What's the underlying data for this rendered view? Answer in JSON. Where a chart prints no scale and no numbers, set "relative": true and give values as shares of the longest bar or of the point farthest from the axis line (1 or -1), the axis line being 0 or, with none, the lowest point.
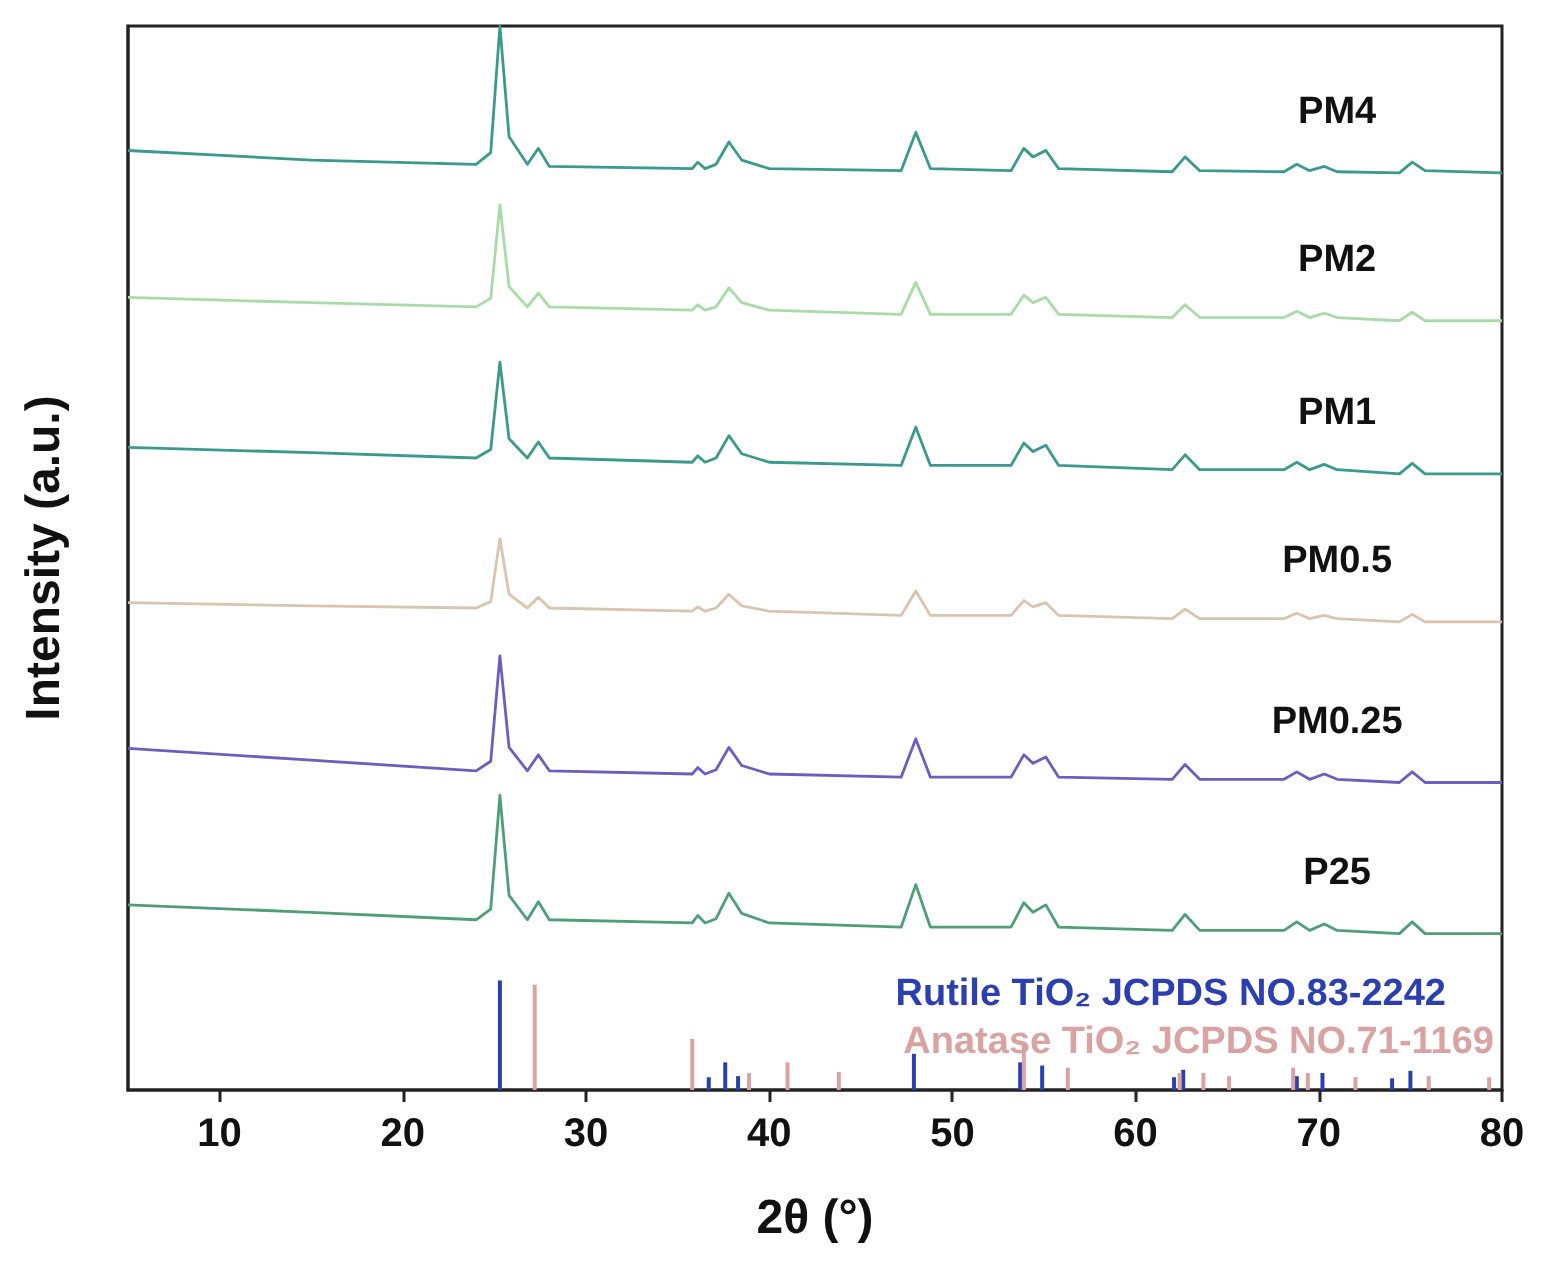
{
  "chart_data": {
    "type": "line",
    "xlabel": "2θ (°)",
    "ylabel": "Intensity (a.u.)",
    "relative": true,
    "grid": false,
    "legend": false,
    "marker": "none",
    "line_style": "solid",
    "xlim": [
      5,
      80
    ],
    "xticks": [
      10,
      20,
      30,
      40,
      50,
      60,
      70,
      80
    ],
    "x": [
      5,
      15,
      24,
      24.8,
      25.3,
      25.8,
      26.8,
      27.4,
      28,
      35.8,
      36.1,
      36.5,
      37.1,
      37.8,
      38.5,
      40,
      47.2,
      48,
      48.8,
      53.2,
      53.9,
      54.4,
      55.1,
      55.8,
      62,
      62.7,
      63.5,
      68.1,
      68.8,
      69.5,
      70.3,
      71,
      74.4,
      75.1,
      75.8,
      80
    ],
    "series": [
      {
        "name": "PM4",
        "color": "#3a9a8c",
        "values": [
          0.883,
          0.874,
          0.87,
          0.881,
          1.0,
          0.896,
          0.87,
          0.885,
          0.868,
          0.866,
          0.872,
          0.866,
          0.87,
          0.891,
          0.874,
          0.866,
          0.864,
          0.9,
          0.866,
          0.864,
          0.885,
          0.877,
          0.883,
          0.866,
          0.863,
          0.877,
          0.864,
          0.863,
          0.87,
          0.864,
          0.868,
          0.863,
          0.862,
          0.872,
          0.864,
          0.862
        ]
      },
      {
        "name": "PM2",
        "color": "#a8dba8",
        "values": [
          0.745,
          0.74,
          0.736,
          0.744,
          0.832,
          0.755,
          0.736,
          0.749,
          0.736,
          0.733,
          0.738,
          0.733,
          0.736,
          0.754,
          0.74,
          0.733,
          0.729,
          0.759,
          0.729,
          0.729,
          0.747,
          0.74,
          0.745,
          0.729,
          0.726,
          0.738,
          0.726,
          0.726,
          0.732,
          0.726,
          0.73,
          0.726,
          0.723,
          0.731,
          0.723,
          0.723
        ]
      },
      {
        "name": "PM1",
        "color": "#3a9a8c",
        "values": [
          0.604,
          0.599,
          0.594,
          0.602,
          0.684,
          0.612,
          0.594,
          0.609,
          0.594,
          0.59,
          0.596,
          0.59,
          0.594,
          0.615,
          0.598,
          0.59,
          0.587,
          0.623,
          0.587,
          0.587,
          0.608,
          0.6,
          0.606,
          0.587,
          0.583,
          0.597,
          0.583,
          0.583,
          0.59,
          0.583,
          0.588,
          0.583,
          0.579,
          0.589,
          0.579,
          0.579
        ]
      },
      {
        "name": "PM0.5",
        "color": "#d9c4b0",
        "values": [
          0.458,
          0.455,
          0.453,
          0.459,
          0.518,
          0.466,
          0.453,
          0.463,
          0.453,
          0.45,
          0.454,
          0.45,
          0.453,
          0.466,
          0.455,
          0.45,
          0.446,
          0.469,
          0.446,
          0.446,
          0.46,
          0.454,
          0.458,
          0.446,
          0.443,
          0.452,
          0.443,
          0.443,
          0.448,
          0.443,
          0.446,
          0.443,
          0.44,
          0.447,
          0.44,
          0.44
        ]
      },
      {
        "name": "PM0.25",
        "color": "#6a5fc0",
        "values": [
          0.321,
          0.31,
          0.3,
          0.309,
          0.408,
          0.322,
          0.3,
          0.315,
          0.3,
          0.297,
          0.303,
          0.297,
          0.301,
          0.322,
          0.305,
          0.297,
          0.294,
          0.33,
          0.294,
          0.294,
          0.315,
          0.307,
          0.313,
          0.294,
          0.292,
          0.306,
          0.292,
          0.292,
          0.299,
          0.292,
          0.297,
          0.292,
          0.289,
          0.299,
          0.289,
          0.289
        ]
      },
      {
        "name": "P25",
        "color": "#4e9e78",
        "values": [
          0.174,
          0.167,
          0.16,
          0.17,
          0.277,
          0.183,
          0.16,
          0.177,
          0.16,
          0.157,
          0.164,
          0.157,
          0.161,
          0.185,
          0.166,
          0.157,
          0.153,
          0.193,
          0.153,
          0.153,
          0.176,
          0.167,
          0.174,
          0.153,
          0.15,
          0.165,
          0.15,
          0.15,
          0.158,
          0.15,
          0.156,
          0.15,
          0.147,
          0.158,
          0.147,
          0.147
        ]
      },
      {
        "name": "Rutile TiO₂ JCPDS NO.83-2242",
        "type": "bar",
        "color": "#2b3fb0",
        "x": [
          25.3,
          36.7,
          37.6,
          38.3,
          47.9,
          53.7,
          54.9,
          62.1,
          62.6,
          68.8,
          70.2,
          74.0,
          75.0
        ],
        "values": [
          0.103,
          0.012,
          0.026,
          0.013,
          0.034,
          0.026,
          0.023,
          0.012,
          0.019,
          0.013,
          0.016,
          0.011,
          0.018
        ]
      },
      {
        "name": "Anatase TiO₂ JCPDS NO.71-1169",
        "type": "bar",
        "color": "#d9a3a3",
        "x": [
          27.2,
          35.8,
          38.9,
          41.0,
          43.8,
          53.9,
          56.3,
          62.4,
          63.7,
          65.1,
          68.6,
          69.4,
          72.0,
          76.0,
          79.3
        ],
        "values": [
          0.099,
          0.048,
          0.016,
          0.026,
          0.017,
          0.044,
          0.021,
          0.016,
          0.016,
          0.013,
          0.021,
          0.016,
          0.012,
          0.013,
          0.012
        ]
      }
    ]
  }
}
